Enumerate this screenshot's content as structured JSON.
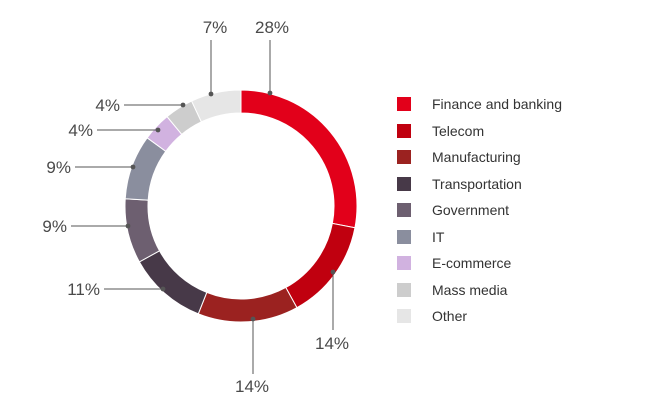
{
  "chart_data": {
    "type": "pie",
    "variant": "donut",
    "legend_position": "right",
    "categories": [
      "Finance and banking",
      "Telecom",
      "Manufacturing",
      "Transportation",
      "Government",
      "IT",
      "E-commerce",
      "Mass media",
      "Other"
    ],
    "values": [
      28,
      14,
      14,
      11,
      9,
      9,
      4,
      4,
      7
    ],
    "labels": [
      "28%",
      "14%",
      "14%",
      "11%",
      "9%",
      "9%",
      "4%",
      "4%",
      "7%"
    ],
    "colors": [
      "#e2001a",
      "#c0000f",
      "#9b2220",
      "#473948",
      "#6d5f70",
      "#8a8e9e",
      "#d1b2e0",
      "#cdcdcd",
      "#e6e6e6"
    ]
  }
}
